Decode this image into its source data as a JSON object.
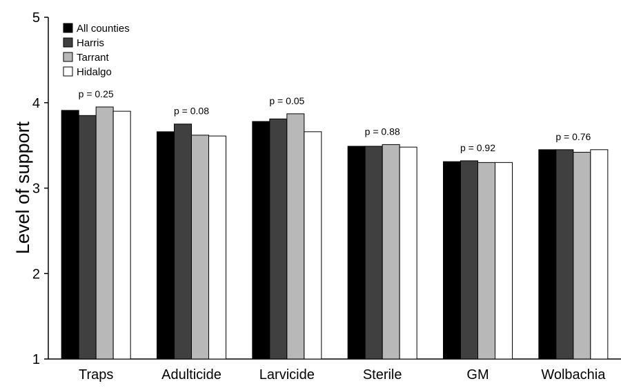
{
  "chart_data": {
    "type": "bar",
    "title": "",
    "xlabel": "",
    "ylabel": "Level of support",
    "ylim": [
      1,
      5
    ],
    "yticks": [
      "1",
      "2",
      "3",
      "4",
      "5"
    ],
    "grid": false,
    "legend_position": "top-left",
    "categories": [
      "Traps",
      "Adulticide",
      "Larvicide",
      "Sterile",
      "GM",
      "Wolbachia"
    ],
    "p_values": [
      "p = 0.25",
      "p = 0.08",
      "p = 0.05",
      "p = 0.88",
      "p = 0.92",
      "p = 0.76"
    ],
    "series": [
      {
        "name": "All counties",
        "color": "#000000",
        "values": [
          3.91,
          3.66,
          3.78,
          3.49,
          3.31,
          3.45
        ]
      },
      {
        "name": "Harris",
        "color": "#404040",
        "values": [
          3.85,
          3.75,
          3.81,
          3.49,
          3.32,
          3.45
        ]
      },
      {
        "name": "Tarrant",
        "color": "#b8b8b8",
        "values": [
          3.95,
          3.62,
          3.87,
          3.51,
          3.3,
          3.42
        ]
      },
      {
        "name": "Hidalgo",
        "color": "#ffffff",
        "values": [
          3.9,
          3.61,
          3.66,
          3.48,
          3.3,
          3.45
        ]
      }
    ]
  }
}
